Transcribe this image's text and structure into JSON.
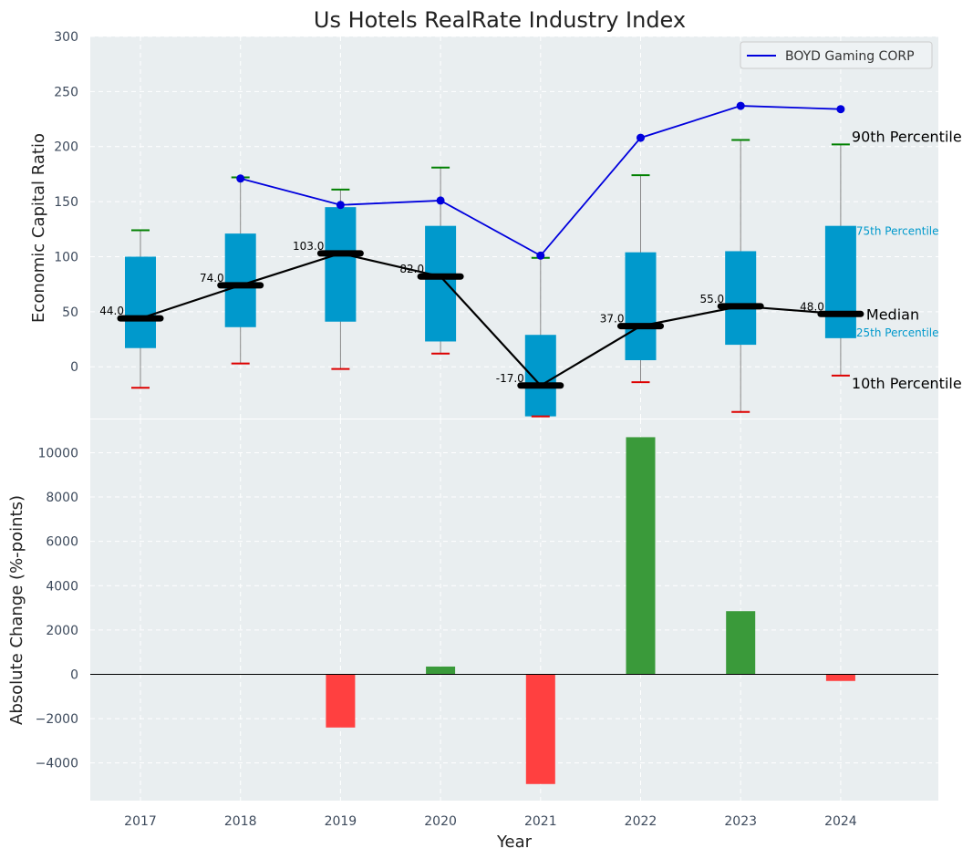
{
  "colors": {
    "panel_bg": "#e9eef0",
    "box": "#0099cc",
    "median": "#000000",
    "company": "#0000dd",
    "p90_cap": "#008000",
    "p10_cap": "#dd0000",
    "positive": "#3a9a3a",
    "negative": "#ff4040",
    "whisker": "#888888"
  },
  "chart_data": [
    {
      "type": "box",
      "title": "Us Hotels RealRate Industry Index",
      "ylabel": "Economic Capital Ratio",
      "ylim": [
        -47,
        300
      ],
      "yticks": [
        0,
        50,
        100,
        150,
        200,
        250,
        300
      ],
      "categories": [
        "2017",
        "2018",
        "2019",
        "2020",
        "2021",
        "2022",
        "2023",
        "2024"
      ],
      "p10": [
        -19,
        3,
        -2,
        12,
        -45,
        -14,
        -41,
        -8
      ],
      "p25": [
        17,
        36,
        41,
        23,
        -45,
        6,
        20,
        26
      ],
      "median": [
        44,
        74,
        103,
        82,
        -17,
        37,
        55,
        48
      ],
      "p75": [
        100,
        121,
        145,
        128,
        29,
        104,
        105,
        128
      ],
      "p90": [
        124,
        172,
        161,
        181,
        99,
        174,
        206,
        202
      ],
      "median_labels": [
        "44.0",
        "74.0",
        "103.0",
        "82.0",
        "-17.0",
        "37.0",
        "55.0",
        "48.0"
      ],
      "company_series": {
        "name": "BOYD Gaming CORP",
        "values": [
          null,
          171,
          147,
          151,
          101,
          208,
          237,
          234
        ]
      },
      "legend_position": "upper right",
      "annotations": {
        "p90": "90th Percentile",
        "p75": "75th Percentile",
        "median": "Median",
        "p25": "25th Percentile",
        "p10": "10th Percentile"
      }
    },
    {
      "type": "bar",
      "xlabel": "Year",
      "ylabel": "Absolute Change (%-points)",
      "ylim": [
        -5700,
        11500
      ],
      "yticks": [
        -4000,
        -2000,
        0,
        2000,
        4000,
        6000,
        8000,
        10000
      ],
      "ytick_labels": [
        "−4000",
        "−2000",
        "0",
        "2000",
        "4000",
        "6000",
        "8000",
        "10000"
      ],
      "categories": [
        "2017",
        "2018",
        "2019",
        "2020",
        "2021",
        "2022",
        "2023",
        "2024"
      ],
      "values": [
        0,
        0,
        -2400,
        350,
        -4950,
        10700,
        2850,
        -300
      ]
    }
  ]
}
